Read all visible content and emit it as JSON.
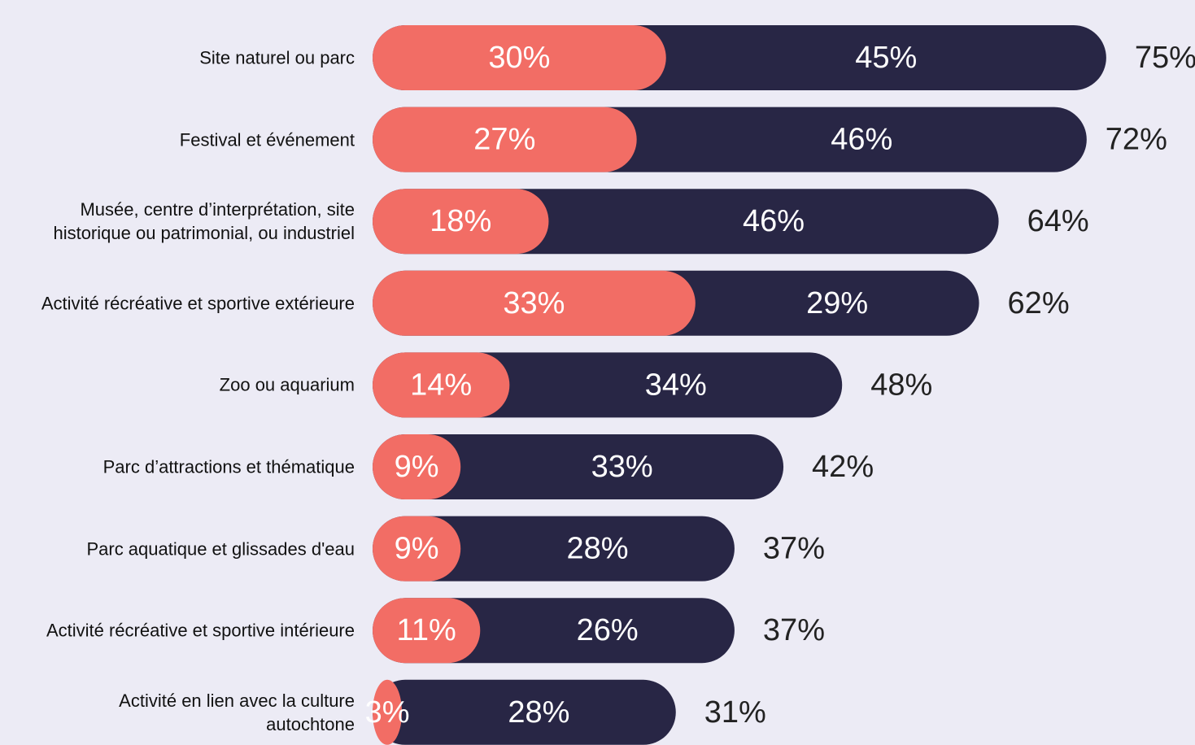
{
  "chart_data": {
    "type": "stacked-bar-horizontal",
    "categories": [
      "Site naturel ou parc",
      "Festival et événement",
      "Musée, centre d’interprétation, site\nhistorique ou patrimonial, ou industriel",
      "Activité récréative et sportive extérieure",
      "Zoo ou aquarium",
      "Parc d’attractions et thématique",
      "Parc aquatique et glissades d'eau",
      "Activité récréative et sportive intérieure",
      "Activité en lien avec la culture\nautochtone"
    ],
    "series": [
      {
        "color": "#f26d65",
        "values": [
          30,
          27,
          18,
          33,
          14,
          9,
          9,
          11,
          3
        ],
        "value_labels": [
          "30%",
          "27%",
          "18%",
          "33%",
          "14%",
          "9%",
          "9%",
          "11%",
          "3%"
        ]
      },
      {
        "color": "#282645",
        "values": [
          45,
          46,
          46,
          29,
          34,
          33,
          28,
          26,
          28
        ],
        "value_labels": [
          "45%",
          "46%",
          "46%",
          "29%",
          "34%",
          "33%",
          "28%",
          "26%",
          "28%"
        ]
      }
    ],
    "totals": [
      75,
      72,
      64,
      62,
      48,
      42,
      37,
      37,
      31
    ],
    "total_labels": [
      "75%",
      "72%",
      "64%",
      "62%",
      "48%",
      "42%",
      "37%",
      "37%",
      "31%"
    ],
    "xlim": [
      0,
      80
    ]
  }
}
